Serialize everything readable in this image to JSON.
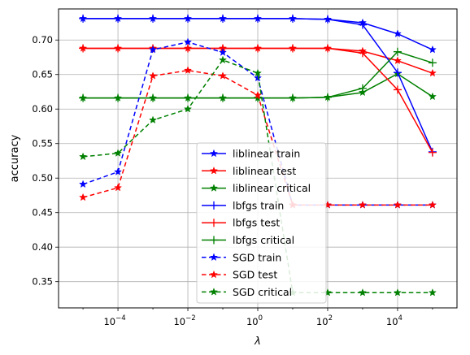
{
  "chart_data": {
    "type": "line",
    "title": "",
    "xlabel": "λ",
    "ylabel": "accuracy",
    "xscale": "log",
    "grid": true,
    "legend_position": "lower-center",
    "xlim_log10": [
      -5.7,
      5.7
    ],
    "ylim": [
      0.312,
      0.745
    ],
    "x_ticks": [
      {
        "exp": -4,
        "label": "10^-4"
      },
      {
        "exp": -2,
        "label": "10^-2"
      },
      {
        "exp": 0,
        "label": "10^0"
      },
      {
        "exp": 2,
        "label": "10^2"
      },
      {
        "exp": 4,
        "label": "10^4"
      }
    ],
    "y_ticks": [
      0.35,
      0.4,
      0.45,
      0.5,
      0.55,
      0.6,
      0.65,
      0.7
    ],
    "y_tick_labels": [
      "0.35",
      "0.40",
      "0.45",
      "0.50",
      "0.55",
      "0.60",
      "0.65",
      "0.70"
    ],
    "x": [
      1e-05,
      0.0001,
      0.001,
      0.01,
      0.1,
      1,
      10,
      100,
      1000,
      10000,
      100000
    ],
    "series": [
      {
        "name": "liblinear train",
        "color": "#0000ff",
        "linestyle": "solid",
        "marker": "star",
        "values": [
          0.731,
          0.731,
          0.731,
          0.731,
          0.731,
          0.731,
          0.731,
          0.73,
          0.725,
          0.709,
          0.686
        ]
      },
      {
        "name": "liblinear test",
        "color": "#ff0000",
        "linestyle": "solid",
        "marker": "star",
        "values": [
          0.688,
          0.688,
          0.688,
          0.688,
          0.688,
          0.688,
          0.688,
          0.688,
          0.684,
          0.67,
          0.652
        ]
      },
      {
        "name": "liblinear critical",
        "color": "#008000",
        "linestyle": "solid",
        "marker": "star",
        "values": [
          0.616,
          0.616,
          0.616,
          0.616,
          0.616,
          0.616,
          0.616,
          0.617,
          0.624,
          0.651,
          0.618
        ]
      },
      {
        "name": "lbfgs train",
        "color": "#0000ff",
        "linestyle": "solid",
        "marker": "plus",
        "values": [
          0.731,
          0.731,
          0.731,
          0.731,
          0.731,
          0.731,
          0.731,
          0.73,
          0.722,
          0.653,
          0.538
        ]
      },
      {
        "name": "lbfgs test",
        "color": "#ff0000",
        "linestyle": "solid",
        "marker": "plus",
        "values": [
          0.688,
          0.688,
          0.688,
          0.688,
          0.688,
          0.688,
          0.688,
          0.688,
          0.681,
          0.628,
          0.537
        ]
      },
      {
        "name": "lbfgs critical",
        "color": "#008000",
        "linestyle": "solid",
        "marker": "plus",
        "values": [
          0.616,
          0.616,
          0.616,
          0.616,
          0.616,
          0.616,
          0.616,
          0.617,
          0.63,
          0.683,
          0.667
        ]
      },
      {
        "name": "SGD train",
        "color": "#0000ff",
        "linestyle": "dashed",
        "marker": "star",
        "values": [
          0.491,
          0.509,
          0.686,
          0.697,
          0.682,
          0.645,
          0.461,
          0.461,
          0.461,
          0.461,
          0.461
        ]
      },
      {
        "name": "SGD test",
        "color": "#ff0000",
        "linestyle": "dashed",
        "marker": "star",
        "values": [
          0.472,
          0.486,
          0.648,
          0.656,
          0.648,
          0.62,
          0.461,
          0.461,
          0.461,
          0.461,
          0.461
        ]
      },
      {
        "name": "SGD critical",
        "color": "#008000",
        "linestyle": "dashed",
        "marker": "star",
        "values": [
          0.531,
          0.536,
          0.584,
          0.6,
          0.671,
          0.652,
          0.334,
          0.334,
          0.334,
          0.334,
          0.334
        ]
      }
    ]
  }
}
